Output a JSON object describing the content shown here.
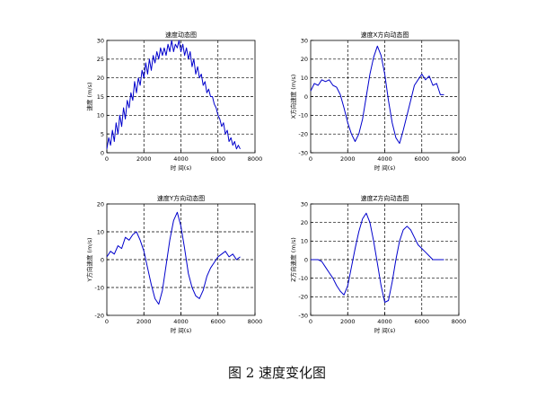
{
  "figure": {
    "caption": "图 2  速度变化图"
  },
  "chart_data": [
    {
      "type": "line",
      "title": "速度动态图",
      "xlabel": "时 间(s)",
      "ylabel": "速度 (m/s)",
      "xlim": [
        0,
        8000
      ],
      "ylim": [
        0,
        30
      ],
      "xticks": [
        0,
        2000,
        4000,
        6000,
        8000
      ],
      "yticks": [
        0,
        5,
        10,
        15,
        20,
        25,
        30
      ],
      "grid": true,
      "color": "#0000cc",
      "series": [
        {
          "x": [
            0,
            100,
            200,
            300,
            400,
            500,
            600,
            700,
            800,
            900,
            1000,
            1100,
            1200,
            1300,
            1400,
            1500,
            1600,
            1700,
            1800,
            1900,
            2000,
            2100,
            2200,
            2300,
            2400,
            2500,
            2600,
            2700,
            2800,
            2900,
            3000,
            3100,
            3200,
            3300,
            3400,
            3500,
            3600,
            3700,
            3800,
            3900,
            4000,
            4100,
            4200,
            4300,
            4400,
            4500,
            4600,
            4700,
            4800,
            4900,
            5000,
            5100,
            5200,
            5300,
            5400,
            5500,
            5600,
            5700,
            5800,
            5900,
            6000,
            6100,
            6200,
            6300,
            6400,
            6500,
            6600,
            6700,
            6800,
            6900,
            7000,
            7100,
            7200
          ],
          "y": [
            1,
            4,
            2,
            6,
            3,
            8,
            5,
            10,
            7,
            12,
            9,
            14,
            12,
            16,
            14,
            19,
            16,
            20,
            18,
            22,
            20,
            24,
            21,
            25,
            22,
            26,
            24,
            27,
            25,
            28,
            26,
            28,
            26,
            29,
            27,
            30,
            27,
            29,
            28,
            30,
            27,
            29,
            26,
            28,
            25,
            27,
            23,
            25,
            21,
            23,
            20,
            21,
            18,
            19,
            16,
            17,
            15,
            15,
            13,
            12,
            10,
            9,
            7,
            8,
            5,
            6,
            3,
            4,
            2,
            3,
            1,
            2,
            1
          ]
        }
      ]
    },
    {
      "type": "line",
      "title": "速度X方向动态图",
      "xlabel": "时 间(s)",
      "ylabel": "X方向速度 (m/s)",
      "xlim": [
        0,
        8000
      ],
      "ylim": [
        -30,
        30
      ],
      "xticks": [
        0,
        2000,
        4000,
        6000,
        8000
      ],
      "yticks": [
        -30,
        -20,
        -10,
        0,
        10,
        20,
        30
      ],
      "grid": true,
      "color": "#0000cc",
      "series": [
        {
          "x": [
            0,
            200,
            400,
            600,
            800,
            1000,
            1200,
            1400,
            1600,
            1800,
            2000,
            2200,
            2400,
            2600,
            2800,
            3000,
            3200,
            3400,
            3600,
            3800,
            4000,
            4200,
            4400,
            4600,
            4800,
            5000,
            5200,
            5400,
            5600,
            5800,
            6000,
            6200,
            6400,
            6600,
            6800,
            7000,
            7200
          ],
          "y": [
            3,
            7,
            6,
            9,
            8,
            9,
            6,
            5,
            1,
            -6,
            -14,
            -20,
            -24,
            -20,
            -12,
            0,
            12,
            21,
            27,
            22,
            12,
            -2,
            -14,
            -22,
            -25,
            -18,
            -10,
            -2,
            6,
            9,
            12,
            9,
            11,
            6,
            7,
            1,
            1
          ]
        }
      ]
    },
    {
      "type": "line",
      "title": "速度Y方向动态图",
      "xlabel": "时 间(s)",
      "ylabel": "Y方向速度 (m/s)",
      "xlim": [
        0,
        8000
      ],
      "ylim": [
        -20,
        20
      ],
      "xticks": [
        0,
        2000,
        4000,
        6000,
        8000
      ],
      "yticks": [
        -20,
        -10,
        0,
        10,
        20
      ],
      "grid": true,
      "color": "#0000cc",
      "series": [
        {
          "x": [
            0,
            200,
            400,
            600,
            800,
            1000,
            1200,
            1400,
            1600,
            1800,
            2000,
            2200,
            2400,
            2600,
            2800,
            3000,
            3200,
            3400,
            3600,
            3800,
            4000,
            4200,
            4400,
            4600,
            4800,
            5000,
            5200,
            5400,
            5600,
            5800,
            6000,
            6200,
            6400,
            6600,
            6800,
            7000,
            7200
          ],
          "y": [
            1,
            3,
            2,
            5,
            4,
            8,
            7,
            9,
            10,
            7,
            3,
            -3,
            -9,
            -14,
            -16,
            -11,
            -2,
            7,
            14,
            17,
            12,
            4,
            -5,
            -10,
            -13,
            -14,
            -11,
            -6,
            -3,
            -1,
            1,
            2,
            3,
            1,
            2,
            0,
            1
          ]
        }
      ]
    },
    {
      "type": "line",
      "title": "速度Z方向动态图",
      "xlabel": "时 间(s)",
      "ylabel": "Z方向速度 (m/s)",
      "xlim": [
        0,
        8000
      ],
      "ylim": [
        -30,
        30
      ],
      "xticks": [
        0,
        2000,
        4000,
        6000,
        8000
      ],
      "yticks": [
        -30,
        -20,
        -10,
        0,
        10,
        20,
        30
      ],
      "grid": true,
      "color": "#0000cc",
      "series": [
        {
          "x": [
            0,
            200,
            400,
            600,
            800,
            1000,
            1200,
            1400,
            1600,
            1800,
            2000,
            2200,
            2400,
            2600,
            2800,
            3000,
            3200,
            3400,
            3600,
            3800,
            4000,
            4200,
            4400,
            4600,
            4800,
            5000,
            5200,
            5400,
            5600,
            5800,
            6000,
            6200,
            6400,
            6600,
            6800,
            7000,
            7200
          ],
          "y": [
            0,
            0,
            0,
            -1,
            -4,
            -7,
            -10,
            -14,
            -17,
            -19,
            -14,
            -4,
            6,
            15,
            22,
            25,
            20,
            10,
            -2,
            -14,
            -23,
            -22,
            -12,
            0,
            10,
            16,
            18,
            16,
            12,
            8,
            6,
            4,
            2,
            0,
            0,
            0,
            0
          ]
        }
      ]
    }
  ]
}
